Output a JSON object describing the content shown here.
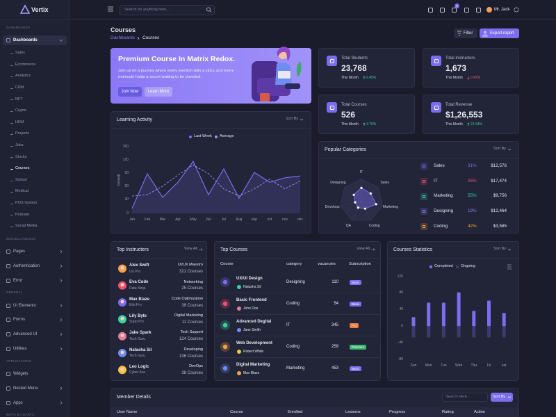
{
  "sidebar": {
    "brand": "Vertix",
    "sections": [
      {
        "title": "DASHBOARDS",
        "items": [
          "Dashboards"
        ],
        "submenu": [
          "Sales",
          "Ecommerce",
          "Analytics",
          "CRM",
          "NFT",
          "Crypto",
          "HRM",
          "Projects",
          "Jobs",
          "Stocks",
          "Courses",
          "School",
          "Medical",
          "POS System",
          "Podcast",
          "Social Media"
        ]
      },
      {
        "title": "MISCELLANEOUS",
        "items": [
          "Pages",
          "Authentication",
          "Error"
        ]
      },
      {
        "title": "GENERAL",
        "items": [
          "UI Elements",
          "Forms",
          "Advanced UI",
          "Utilities"
        ]
      },
      {
        "title": "APPLICATIONS",
        "items": [
          "Widgets",
          "Nested Menu",
          "Apps"
        ]
      },
      {
        "title": "MAPS & CHARTS"
      }
    ]
  },
  "header": {
    "search_placeholder": "Search for anything here...",
    "cart_badge": "5",
    "user": "Mr. Jack"
  },
  "page": {
    "title": "Courses",
    "breadcrumb": [
      "Dashboards",
      "Courses"
    ],
    "buttons": [
      "Filter",
      "Export report"
    ]
  },
  "banner": {
    "title": "Premium Course In Matrix Redox.",
    "text": "Join us on a journey where every electron tells a story, and every molecule holds a secret waiting to be unveiled.",
    "buttons": [
      "Join Now",
      "Learn More"
    ]
  },
  "stats": [
    {
      "label": "Total Students",
      "value": "23,768",
      "period": "This Month",
      "change": "2.45%",
      "trend": "up"
    },
    {
      "label": "Total Instructors",
      "value": "1,673",
      "period": "This Month",
      "change": "0.42%",
      "trend": "down"
    },
    {
      "label": "Total Courses",
      "value": "526",
      "period": "This Month",
      "change": "3.75%",
      "trend": "up"
    },
    {
      "label": "Total Revenue",
      "value": "$1,26,553",
      "period": "This Month",
      "change": "21.54%",
      "trend": "up"
    }
  ],
  "chart_data": [
    {
      "type": "line",
      "title": "Learning Activity",
      "menu": "Sort By",
      "ylabel": "Growth",
      "categories": [
        "Jan",
        "Feb",
        "Mar",
        "Apr",
        "May",
        "Jun",
        "Jul",
        "Aug",
        "sep",
        "oct",
        "nov",
        "dec"
      ],
      "series": [
        {
          "name": "Last Week",
          "color": "#7c6cf0",
          "area": true,
          "values": [
            11,
            89,
            36,
            70,
            117,
            42,
            100,
            34,
            92,
            70,
            80,
            84
          ]
        },
        {
          "name": "Average",
          "color": "#9d8ff7",
          "dashed": true,
          "values": [
            39,
            42,
            61,
            86,
            109,
            89,
            55,
            39,
            55,
            77,
            55,
            73
          ]
        }
      ],
      "ylim": [
        0,
        150
      ],
      "yticks": [
        0,
        30,
        60,
        90,
        120,
        150
      ],
      "grid": false
    },
    {
      "type": "radar",
      "title": "Popular Categories",
      "menu": "Sort By",
      "categories": [
        "IT",
        "Sales",
        "Marketing",
        "Coding",
        "QA",
        "Develops",
        "Designing"
      ],
      "values": [
        60,
        55,
        70,
        40,
        35,
        30,
        45
      ],
      "color": "#7c6cf0",
      "rlim": [
        0,
        100
      ],
      "rticks": [
        100
      ]
    },
    {
      "type": "bar",
      "title": "Courses Statistics",
      "menu": "Sort By",
      "categories": [
        "Sun",
        "Mon",
        "Tue",
        "Wed",
        "Thu",
        "Fri",
        "sat"
      ],
      "series": [
        {
          "name": "Completed",
          "color": "#7c6cf0",
          "values": [
            22,
            57,
            57,
            82,
            37,
            62,
            32
          ]
        },
        {
          "name": "Ongoing",
          "color": "#3d3a70",
          "values": [
            -27,
            -27,
            -27,
            -27,
            -27,
            -27,
            -27
          ]
        }
      ],
      "ylim": [
        -80,
        120
      ],
      "yticks": [
        120,
        80,
        40,
        0,
        -40,
        -80
      ],
      "grid": false
    }
  ],
  "popular_categories": {
    "rows": [
      [
        "Sales",
        "31%",
        "$12,576"
      ],
      [
        "IT",
        "25%",
        "$17,474"
      ],
      [
        "Marketing",
        "55%",
        "$9,756"
      ],
      [
        "Designing",
        "19%",
        "$12,464"
      ],
      [
        "Coding",
        "42%",
        "$3,585"
      ]
    ]
  },
  "top_instructors": {
    "title": "Top Instructers",
    "link": "View All",
    "rows": [
      {
        "name": "Alex Swift",
        "handle": "UX Pro",
        "role": "UI/UX Maestro",
        "courses": "321 Courses"
      },
      {
        "name": "Eva Code",
        "handle": "Data Ninja",
        "role": "Networking",
        "courses": "25 Courses"
      },
      {
        "name": "Max Blaze",
        "handle": "Ethi Pro",
        "role": "Code Optimization",
        "courses": "39 Courses"
      },
      {
        "name": "Lily Byte",
        "handle": "Supp Pro",
        "role": "Digital Marketing",
        "courses": "11 Courses"
      },
      {
        "name": "Jake Spark",
        "handle": "Tech Guru",
        "role": "Tech Support",
        "courses": "124 Courses"
      },
      {
        "name": "Natasha Sil",
        "handle": "Tech Guru",
        "role": "Developing",
        "courses": "136 Courses"
      },
      {
        "name": "Leo Logic",
        "handle": "Cyber Ace",
        "role": "DevOps",
        "courses": "38 Courses"
      }
    ]
  },
  "top_courses": {
    "title": "Top Courses",
    "link": "View All",
    "columns": [
      "Course",
      "category",
      "vacancies",
      "Subscription"
    ],
    "rows": [
      {
        "course": "UX/UI Design",
        "instructor": "Natasha Sil",
        "category": "Designing",
        "vacancies": "110",
        "plan": "Basic"
      },
      {
        "course": "Basic Frontend",
        "instructor": "John Doe",
        "category": "Coding",
        "vacancies": "54",
        "plan": "Basic"
      },
      {
        "course": "Advanced Degital",
        "instructor": "Jane Smith",
        "category": "IT",
        "vacancies": "345",
        "plan": "Pro"
      },
      {
        "course": "Web Development",
        "instructor": "Robert White",
        "category": "Coding",
        "vacancies": "259",
        "plan": "Premium"
      },
      {
        "course": "Digital Marketing",
        "instructor": "Max Blaze",
        "category": "Marketing",
        "vacancies": "453",
        "plan": "Basic"
      }
    ]
  },
  "member_details": {
    "title": "Member Details",
    "search_placeholder": "Search Here",
    "sort": "Sort By",
    "columns": [
      "User Name",
      "Course",
      "Enrolled",
      "Lessons",
      "Progress",
      "Rating",
      "Action"
    ]
  }
}
